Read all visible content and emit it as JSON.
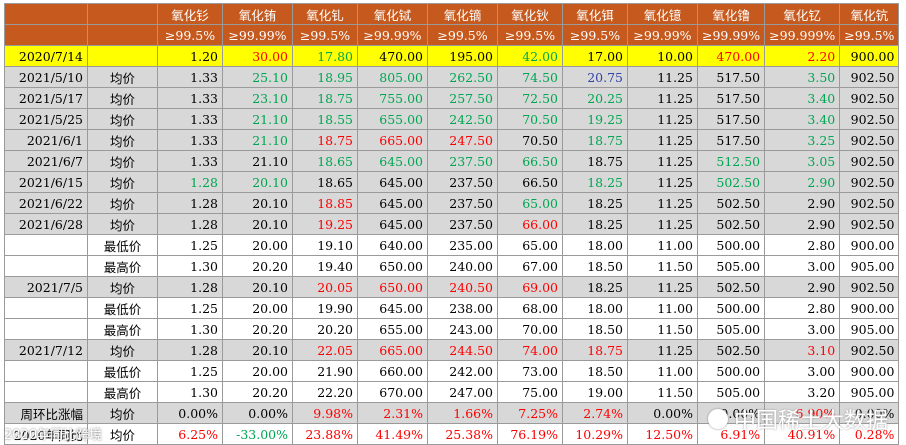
{
  "headers": {
    "row1": [
      "",
      "",
      "氧化钐",
      "氧化铕",
      "氧化钆",
      "氧化铽",
      "氧化镝",
      "氧化钬",
      "氧化铒",
      "氧化镱",
      "氧化镥",
      "氧化钇",
      "氧化钪"
    ],
    "row2": [
      "",
      "",
      "≥99.5%",
      "≥99.99%",
      "≥99.5%",
      "≥99.99%",
      "≥99.5%",
      "≥99.5%",
      "≥99.5%",
      "≥99.99%",
      "≥99.99%",
      "≥99.999%",
      "≥99.5%"
    ]
  },
  "rows": [
    {
      "bg": "yellow",
      "date": "2020/7/14",
      "type": "",
      "values": [
        "1.20",
        "30.00",
        "17.80",
        "470.00",
        "195.00",
        "42.00",
        "17.00",
        "10.00",
        "470.00",
        "2.20",
        "900.00"
      ],
      "colors": [
        "black",
        "red",
        "green",
        "black",
        "black",
        "green",
        "black",
        "black",
        "red",
        "red",
        "black"
      ]
    },
    {
      "bg": "gray",
      "date": "2021/5/10",
      "type": "均价",
      "values": [
        "1.33",
        "25.10",
        "18.95",
        "805.00",
        "262.50",
        "74.50",
        "20.75",
        "11.25",
        "517.50",
        "3.50",
        "902.50"
      ],
      "colors": [
        "black",
        "green",
        "green",
        "green",
        "green",
        "green",
        "blue",
        "black",
        "black",
        "green",
        "black"
      ]
    },
    {
      "bg": "gray",
      "date": "2021/5/17",
      "type": "均价",
      "values": [
        "1.33",
        "23.10",
        "18.75",
        "755.00",
        "257.50",
        "72.50",
        "20.25",
        "11.25",
        "517.50",
        "3.40",
        "902.50"
      ],
      "colors": [
        "black",
        "green",
        "green",
        "green",
        "green",
        "green",
        "green",
        "black",
        "black",
        "green",
        "black"
      ]
    },
    {
      "bg": "gray",
      "date": "2021/5/25",
      "type": "均价",
      "values": [
        "1.33",
        "21.10",
        "18.55",
        "655.00",
        "242.50",
        "70.50",
        "19.25",
        "11.25",
        "517.50",
        "3.40",
        "902.50"
      ],
      "colors": [
        "black",
        "green",
        "green",
        "green",
        "green",
        "green",
        "green",
        "black",
        "black",
        "green",
        "black"
      ]
    },
    {
      "bg": "gray",
      "date": "2021/6/1",
      "type": "均价",
      "values": [
        "1.33",
        "21.10",
        "18.75",
        "665.00",
        "247.50",
        "70.50",
        "18.75",
        "11.25",
        "517.50",
        "3.25",
        "902.50"
      ],
      "colors": [
        "black",
        "green",
        "red",
        "red",
        "red",
        "black",
        "green",
        "black",
        "black",
        "green",
        "black"
      ]
    },
    {
      "bg": "gray",
      "date": "2021/6/7",
      "type": "均价",
      "values": [
        "1.33",
        "21.10",
        "18.65",
        "645.00",
        "237.50",
        "66.50",
        "18.75",
        "11.25",
        "512.50",
        "3.05",
        "902.50"
      ],
      "colors": [
        "black",
        "black",
        "green",
        "green",
        "green",
        "green",
        "black",
        "black",
        "green",
        "green",
        "black"
      ]
    },
    {
      "bg": "gray",
      "date": "2021/6/15",
      "type": "均价",
      "values": [
        "1.28",
        "20.10",
        "18.65",
        "645.00",
        "237.50",
        "66.50",
        "18.25",
        "11.25",
        "502.50",
        "2.90",
        "902.50"
      ],
      "colors": [
        "green",
        "green",
        "black",
        "black",
        "black",
        "black",
        "green",
        "black",
        "green",
        "green",
        "black"
      ]
    },
    {
      "bg": "gray",
      "date": "2021/6/22",
      "type": "均价",
      "values": [
        "1.28",
        "20.10",
        "18.85",
        "645.00",
        "237.50",
        "65.00",
        "18.25",
        "11.25",
        "502.50",
        "2.90",
        "902.50"
      ],
      "colors": [
        "black",
        "black",
        "red",
        "black",
        "black",
        "green",
        "black",
        "black",
        "black",
        "black",
        "black"
      ]
    },
    {
      "bg": "gray",
      "date": "2021/6/28",
      "type": "均价",
      "values": [
        "1.28",
        "20.10",
        "19.25",
        "645.00",
        "237.50",
        "66.00",
        "18.25",
        "11.25",
        "502.50",
        "2.90",
        "902.50"
      ],
      "colors": [
        "black",
        "black",
        "red",
        "black",
        "black",
        "red",
        "black",
        "black",
        "black",
        "black",
        "black"
      ]
    },
    {
      "bg": "white",
      "date": "",
      "type": "最低价",
      "values": [
        "1.25",
        "20.00",
        "19.10",
        "640.00",
        "235.00",
        "65.00",
        "18.00",
        "11.00",
        "500.00",
        "2.80",
        "900.00"
      ],
      "colors": [
        "black",
        "black",
        "black",
        "black",
        "black",
        "black",
        "black",
        "black",
        "black",
        "black",
        "black"
      ]
    },
    {
      "bg": "white",
      "date": "",
      "type": "最高价",
      "values": [
        "1.30",
        "20.20",
        "19.40",
        "650.00",
        "240.00",
        "67.00",
        "18.50",
        "11.50",
        "505.00",
        "3.00",
        "905.00"
      ],
      "colors": [
        "black",
        "black",
        "black",
        "black",
        "black",
        "black",
        "black",
        "black",
        "black",
        "black",
        "black"
      ]
    },
    {
      "bg": "gray",
      "date": "2021/7/5",
      "type": "均价",
      "values": [
        "1.28",
        "20.10",
        "20.05",
        "650.00",
        "240.50",
        "69.00",
        "18.25",
        "11.25",
        "502.50",
        "2.90",
        "902.50"
      ],
      "colors": [
        "black",
        "black",
        "red",
        "red",
        "red",
        "red",
        "black",
        "black",
        "black",
        "black",
        "black"
      ]
    },
    {
      "bg": "white",
      "date": "",
      "type": "最低价",
      "values": [
        "1.25",
        "20.00",
        "19.90",
        "645.00",
        "238.00",
        "68.00",
        "18.00",
        "11.00",
        "500.00",
        "2.80",
        "900.00"
      ],
      "colors": [
        "black",
        "black",
        "black",
        "black",
        "black",
        "black",
        "black",
        "black",
        "black",
        "black",
        "black"
      ]
    },
    {
      "bg": "white",
      "date": "",
      "type": "最高价",
      "values": [
        "1.30",
        "20.20",
        "20.20",
        "655.00",
        "243.00",
        "70.00",
        "18.50",
        "11.50",
        "505.00",
        "3.00",
        "905.00"
      ],
      "colors": [
        "black",
        "black",
        "black",
        "black",
        "black",
        "black",
        "black",
        "black",
        "black",
        "black",
        "black"
      ]
    },
    {
      "bg": "gray",
      "date": "2021/7/12",
      "type": "均价",
      "values": [
        "1.28",
        "20.10",
        "22.05",
        "665.00",
        "244.50",
        "74.00",
        "18.75",
        "11.25",
        "502.50",
        "3.10",
        "902.50"
      ],
      "colors": [
        "black",
        "black",
        "red",
        "red",
        "red",
        "red",
        "red",
        "black",
        "black",
        "red",
        "black"
      ]
    },
    {
      "bg": "white",
      "date": "",
      "type": "最低价",
      "values": [
        "1.25",
        "20.00",
        "21.90",
        "660.00",
        "242.00",
        "73.00",
        "18.50",
        "11.00",
        "500.00",
        "3.00",
        "900.00"
      ],
      "colors": [
        "black",
        "black",
        "black",
        "black",
        "black",
        "black",
        "black",
        "black",
        "black",
        "black",
        "black"
      ]
    },
    {
      "bg": "white",
      "date": "",
      "type": "最高价",
      "values": [
        "1.30",
        "20.20",
        "22.20",
        "670.00",
        "247.00",
        "75.00",
        "19.00",
        "11.50",
        "505.00",
        "3.20",
        "905.00"
      ],
      "colors": [
        "black",
        "black",
        "black",
        "black",
        "black",
        "black",
        "black",
        "black",
        "black",
        "black",
        "black"
      ]
    },
    {
      "bg": "gray",
      "date": "周环比涨幅",
      "type": "均价",
      "values": [
        "0.00%",
        "0.00%",
        "9.98%",
        "2.31%",
        "1.66%",
        "7.25%",
        "2.74%",
        "0.00%",
        "0.00%",
        "6.90%",
        "0.00%"
      ],
      "colors": [
        "black",
        "black",
        "red",
        "red",
        "red",
        "red",
        "red",
        "black",
        "black",
        "red",
        "black"
      ]
    },
    {
      "bg": "white",
      "date": "2020年同比",
      "type": "均价",
      "values": [
        "6.25%",
        "-33.00%",
        "23.88%",
        "41.49%",
        "25.38%",
        "76.19%",
        "10.29%",
        "12.50%",
        "6.91%",
        "40.91%",
        "0.28%"
      ],
      "colors": [
        "red",
        "green",
        "red",
        "red",
        "red",
        "red",
        "red",
        "red",
        "red",
        "red",
        "red"
      ]
    }
  ],
  "watermark": {
    "text": "中国稀土大数据",
    "icon": "wechat-icon"
  },
  "stamp": "2020年同比跨境"
}
